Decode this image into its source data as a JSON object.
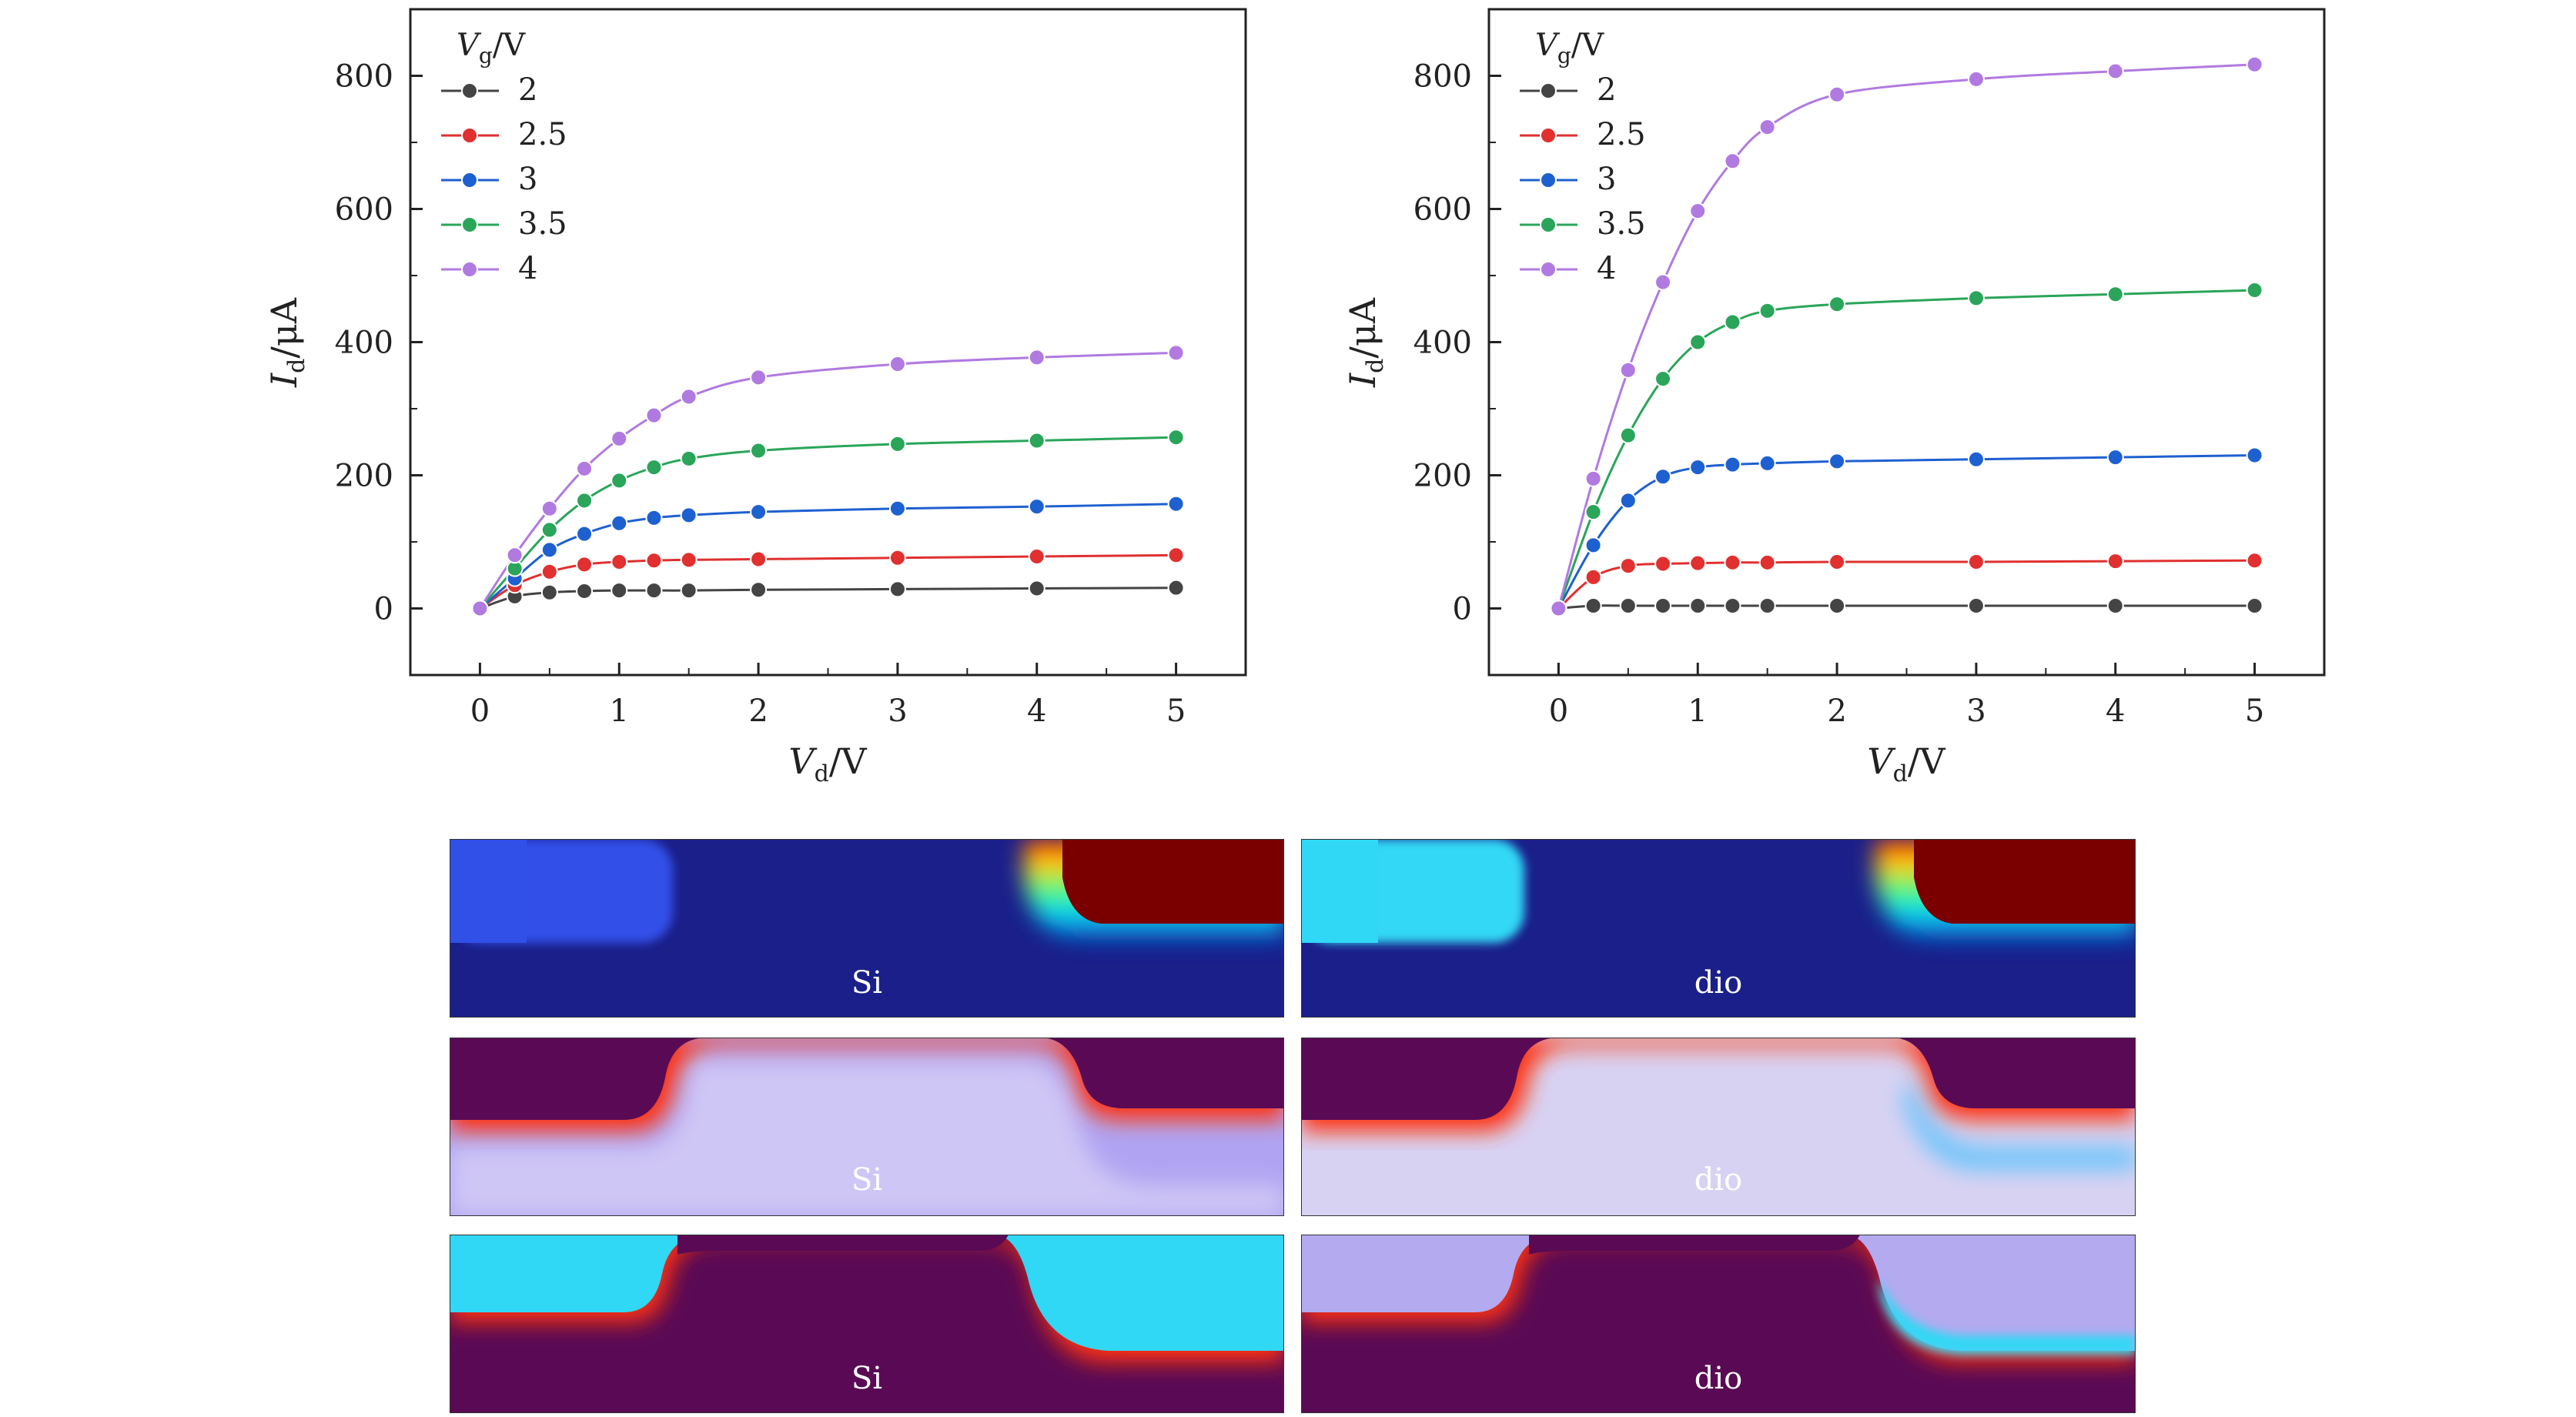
{
  "chart_data": [
    {
      "type": "line",
      "id": "left-chart",
      "xlabel": "V_d/V",
      "ylabel": "I_d/μA",
      "xlim": [
        -0.5,
        5.5
      ],
      "ylim": [
        -100,
        900
      ],
      "xticks": [
        0,
        1,
        2,
        3,
        4,
        5
      ],
      "yticks": [
        0,
        200,
        400,
        600,
        800
      ],
      "legend_title": "V_g/V",
      "legend_position": "top-left",
      "x": [
        0,
        0.25,
        0.5,
        0.75,
        1,
        1.25,
        1.5,
        2,
        3,
        4,
        5
      ],
      "series": [
        {
          "name": "2",
          "color": "#444444",
          "values": [
            0,
            18,
            24,
            26,
            27,
            27,
            27,
            28,
            29,
            30,
            31
          ]
        },
        {
          "name": "2.5",
          "color": "#e03030",
          "values": [
            0,
            35,
            55,
            66,
            70,
            72,
            73,
            74,
            76,
            78,
            80
          ]
        },
        {
          "name": "3",
          "color": "#1e60d0",
          "values": [
            0,
            45,
            88,
            112,
            128,
            136,
            140,
            145,
            150,
            153,
            157
          ]
        },
        {
          "name": "3.5",
          "color": "#2aa55a",
          "values": [
            0,
            60,
            118,
            162,
            192,
            212,
            225,
            237,
            247,
            252,
            257
          ]
        },
        {
          "name": "4",
          "color": "#b07ae0",
          "values": [
            0,
            80,
            150,
            210,
            255,
            290,
            318,
            347,
            367,
            377,
            384
          ]
        }
      ]
    },
    {
      "type": "line",
      "id": "right-chart",
      "xlabel": "V_d/V",
      "ylabel": "I_d/μA",
      "xlim": [
        -0.5,
        5.5
      ],
      "ylim": [
        -100,
        900
      ],
      "xticks": [
        0,
        1,
        2,
        3,
        4,
        5
      ],
      "yticks": [
        0,
        200,
        400,
        600,
        800
      ],
      "legend_title": "V_g/V",
      "legend_position": "top-left",
      "x": [
        0,
        0.25,
        0.5,
        0.75,
        1,
        1.25,
        1.5,
        2,
        3,
        4,
        5
      ],
      "series": [
        {
          "name": "2",
          "color": "#444444",
          "values": [
            0,
            4,
            4,
            4,
            4,
            4,
            4,
            4,
            4,
            4,
            4
          ]
        },
        {
          "name": "2.5",
          "color": "#e03030",
          "values": [
            0,
            47,
            64,
            67,
            68,
            69,
            69,
            70,
            70,
            71,
            72
          ]
        },
        {
          "name": "3",
          "color": "#1e60d0",
          "values": [
            0,
            95,
            162,
            198,
            212,
            216,
            218,
            221,
            224,
            227,
            230
          ]
        },
        {
          "name": "3.5",
          "color": "#2aa55a",
          "values": [
            0,
            145,
            260,
            345,
            400,
            430,
            447,
            457,
            466,
            472,
            478
          ]
        },
        {
          "name": "4",
          "color": "#b07ae0",
          "values": [
            0,
            195,
            358,
            490,
            597,
            672,
            723,
            772,
            795,
            807,
            817
          ]
        }
      ]
    }
  ],
  "maps": [
    [
      "Si",
      "dio"
    ],
    [
      "Si",
      "dio"
    ],
    [
      "Si",
      "dio"
    ]
  ]
}
